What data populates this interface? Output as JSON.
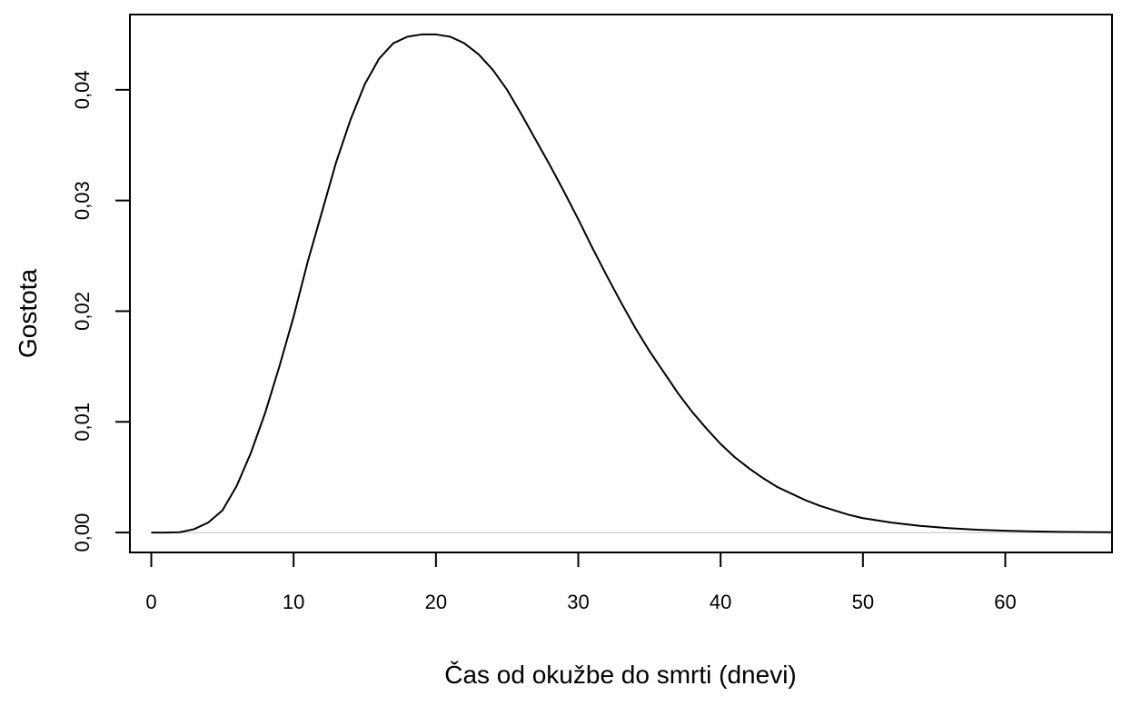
{
  "chart_data": {
    "type": "line",
    "title": "",
    "xlabel": "Čas od okužbe do smrti (dnevi)",
    "ylabel": "Gostota",
    "xlim": [
      -1.5,
      67.5
    ],
    "ylim": [
      -0.0018,
      0.0468
    ],
    "x_ticks": [
      0,
      10,
      20,
      30,
      40,
      50,
      60
    ],
    "x_tick_labels": [
      "0",
      "10",
      "20",
      "30",
      "40",
      "50",
      "60"
    ],
    "y_ticks": [
      0,
      0.01,
      0.02,
      0.03,
      0.04
    ],
    "y_tick_labels": [
      "0,00",
      "0,01",
      "0,02",
      "0,03",
      "0,04"
    ],
    "reference_line_y": 0,
    "grid": false,
    "legend": "none",
    "series": [
      {
        "x": [
          0,
          1,
          2,
          3,
          4,
          5,
          6,
          7,
          8,
          9,
          10,
          11,
          12,
          13,
          14,
          15,
          16,
          17,
          18,
          19,
          20,
          21,
          22,
          23,
          24,
          25,
          26,
          27,
          28,
          29,
          30,
          31,
          32,
          33,
          34,
          35,
          36,
          37,
          38,
          39,
          40,
          41,
          42,
          43,
          44,
          45,
          46,
          47,
          48,
          49,
          50,
          52,
          54,
          56,
          58,
          60,
          62,
          64,
          66,
          67.5
        ],
        "y": [
          0,
          0,
          3e-05,
          0.0003,
          0.0009,
          0.002,
          0.0042,
          0.0072,
          0.0108,
          0.015,
          0.0195,
          0.0245,
          0.029,
          0.0335,
          0.0373,
          0.0405,
          0.0428,
          0.0442,
          0.0448,
          0.045,
          0.045,
          0.0448,
          0.0442,
          0.0432,
          0.0418,
          0.04,
          0.0378,
          0.0355,
          0.0332,
          0.0308,
          0.0283,
          0.0257,
          0.0232,
          0.0208,
          0.0185,
          0.0164,
          0.0145,
          0.0126,
          0.0109,
          0.0094,
          0.008,
          0.0068,
          0.0058,
          0.0049,
          0.0041,
          0.0035,
          0.0029,
          0.0024,
          0.002,
          0.0016,
          0.0013,
          0.0009,
          0.0006,
          0.0004,
          0.00025,
          0.00016,
          0.0001,
          6e-05,
          4e-05,
          3e-05
        ]
      }
    ]
  }
}
